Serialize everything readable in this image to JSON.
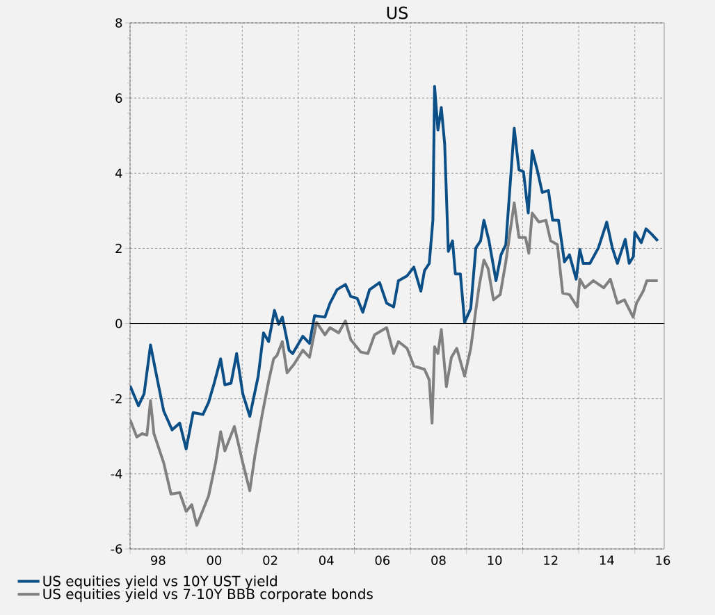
{
  "chart_data": {
    "type": "line",
    "title": "US",
    "xlim": [
      1997,
      2016.05
    ],
    "xticks": [
      {
        "value": 1997,
        "label": null
      },
      {
        "value": 1999,
        "label": null
      },
      {
        "value": 2001,
        "label": null
      },
      {
        "value": 2003,
        "label": null
      },
      {
        "value": 2005,
        "label": null
      },
      {
        "value": 2007,
        "label": null
      },
      {
        "value": 2009,
        "label": null
      },
      {
        "value": 2011,
        "label": null
      },
      {
        "value": 2013,
        "label": null
      },
      {
        "value": 2015,
        "label": null
      },
      {
        "value": 1998,
        "label": "98"
      },
      {
        "value": 2000,
        "label": "00"
      },
      {
        "value": 2002,
        "label": "02"
      },
      {
        "value": 2004,
        "label": "04"
      },
      {
        "value": 2006,
        "label": "06"
      },
      {
        "value": 2008,
        "label": "08"
      },
      {
        "value": 2010,
        "label": "10"
      },
      {
        "value": 2012,
        "label": "12"
      },
      {
        "value": 2014,
        "label": "14"
      },
      {
        "value": 2016,
        "label": "16"
      }
    ],
    "ylim": [
      -6,
      8
    ],
    "yticks": [
      -6,
      -4,
      -2,
      0,
      2,
      4,
      6,
      8
    ],
    "grid": true,
    "legend": "bottom left",
    "marker": "none",
    "line_style": "solid",
    "ref_lines": [
      {
        "axis": "y",
        "value": 0,
        "color": "#000000"
      }
    ],
    "series": [
      {
        "name": "US equities yield vs 10Y UST yield",
        "color": "#0b4f86",
        "x": [
          1997.0,
          1997.3,
          1997.5,
          1997.73,
          1997.9,
          1998.2,
          1998.5,
          1998.77,
          1999.0,
          1999.25,
          1999.6,
          1999.8,
          2000.0,
          2000.23,
          2000.38,
          2000.6,
          2000.8,
          2001.02,
          2001.27,
          2001.57,
          2001.76,
          2001.94,
          2002.15,
          2002.3,
          2002.43,
          2002.67,
          2002.8,
          2003.16,
          2003.4,
          2003.58,
          2003.95,
          2004.13,
          2004.38,
          2004.68,
          2004.87,
          2005.1,
          2005.3,
          2005.54,
          2005.9,
          2006.15,
          2006.4,
          2006.57,
          2006.88,
          2007.12,
          2007.37,
          2007.5,
          2007.67,
          2007.8,
          2007.86,
          2007.98,
          2008.1,
          2008.22,
          2008.35,
          2008.5,
          2008.6,
          2008.78,
          2008.93,
          2009.15,
          2009.33,
          2009.5,
          2009.62,
          2009.8,
          2010.05,
          2010.23,
          2010.4,
          2010.7,
          2010.87,
          2011.03,
          2011.2,
          2011.34,
          2011.52,
          2011.7,
          2011.92,
          2012.07,
          2012.28,
          2012.49,
          2012.67,
          2012.91,
          2013.04,
          2013.16,
          2013.4,
          2013.7,
          2014.0,
          2014.2,
          2014.38,
          2014.66,
          2014.8,
          2014.95,
          2015.0,
          2015.23,
          2015.4,
          2015.6,
          2015.82
        ],
        "values": [
          -1.66,
          -2.19,
          -1.87,
          -0.57,
          -1.22,
          -2.33,
          -2.83,
          -2.65,
          -3.34,
          -2.37,
          -2.42,
          -2.1,
          -1.59,
          -0.94,
          -1.63,
          -1.59,
          -0.8,
          -1.87,
          -2.47,
          -1.4,
          -0.25,
          -0.48,
          0.35,
          -0.02,
          0.17,
          -0.71,
          -0.8,
          -0.34,
          -0.53,
          0.21,
          0.17,
          0.54,
          0.9,
          1.04,
          0.72,
          0.67,
          0.3,
          0.9,
          1.09,
          0.54,
          0.44,
          1.14,
          1.27,
          1.5,
          0.86,
          1.41,
          1.6,
          2.75,
          6.31,
          5.15,
          5.75,
          4.78,
          1.92,
          2.2,
          1.32,
          1.32,
          0.03,
          0.4,
          2.01,
          2.2,
          2.75,
          2.2,
          1.14,
          1.83,
          2.1,
          5.2,
          4.09,
          4.04,
          2.94,
          4.6,
          4.09,
          3.49,
          3.54,
          2.75,
          2.75,
          1.64,
          1.83,
          1.18,
          1.97,
          1.6,
          1.6,
          2.01,
          2.7,
          2.01,
          1.6,
          2.24,
          1.6,
          1.78,
          2.43,
          2.15,
          2.52,
          2.38,
          2.2
        ]
      },
      {
        "name": "US equities yield vs 7-10Y BBB corporate bonds",
        "color": "#808080",
        "x": [
          1997.0,
          1997.24,
          1997.43,
          1997.6,
          1997.73,
          1997.85,
          1998.2,
          1998.46,
          1998.77,
          1999.0,
          1999.2,
          1999.38,
          1999.8,
          2000.05,
          2000.23,
          2000.38,
          2000.72,
          2001.02,
          2001.27,
          2001.45,
          2001.7,
          2001.94,
          2002.12,
          2002.24,
          2002.43,
          2002.6,
          2002.85,
          2003.16,
          2003.4,
          2003.65,
          2003.95,
          2004.13,
          2004.44,
          2004.68,
          2004.87,
          2005.23,
          2005.48,
          2005.72,
          2006.15,
          2006.4,
          2006.57,
          2006.88,
          2007.12,
          2007.5,
          2007.67,
          2007.77,
          2007.86,
          2007.98,
          2008.1,
          2008.28,
          2008.46,
          2008.65,
          2008.93,
          2009.15,
          2009.33,
          2009.45,
          2009.62,
          2009.77,
          2009.96,
          2010.2,
          2010.4,
          2010.7,
          2010.87,
          2011.1,
          2011.22,
          2011.34,
          2011.58,
          2011.83,
          2012.0,
          2012.24,
          2012.43,
          2012.67,
          2012.95,
          2013.04,
          2013.22,
          2013.52,
          2013.89,
          2014.13,
          2014.38,
          2014.63,
          2014.94,
          2015.06,
          2015.3,
          2015.43,
          2015.82
        ],
        "values": [
          -2.56,
          -3.02,
          -2.93,
          -2.97,
          -2.05,
          -2.93,
          -3.71,
          -4.54,
          -4.5,
          -5.0,
          -4.82,
          -5.37,
          -4.59,
          -3.71,
          -2.88,
          -3.39,
          -2.74,
          -3.71,
          -4.45,
          -3.53,
          -2.47,
          -1.54,
          -0.94,
          -0.85,
          -0.48,
          -1.31,
          -1.08,
          -0.71,
          -0.9,
          0.03,
          -0.3,
          -0.11,
          -0.25,
          0.07,
          -0.43,
          -0.76,
          -0.8,
          -0.3,
          -0.11,
          -0.8,
          -0.48,
          -0.66,
          -1.13,
          -1.22,
          -1.5,
          -2.65,
          -0.62,
          -0.8,
          -0.16,
          -1.68,
          -0.9,
          -0.66,
          -1.4,
          -0.66,
          0.35,
          1.0,
          1.69,
          1.46,
          0.63,
          0.77,
          1.64,
          3.21,
          2.29,
          2.29,
          1.87,
          2.94,
          2.7,
          2.75,
          2.2,
          2.1,
          0.81,
          0.77,
          0.44,
          1.18,
          0.95,
          1.14,
          0.95,
          1.18,
          0.54,
          0.63,
          0.17,
          0.54,
          0.86,
          1.14,
          1.14
        ]
      }
    ]
  }
}
